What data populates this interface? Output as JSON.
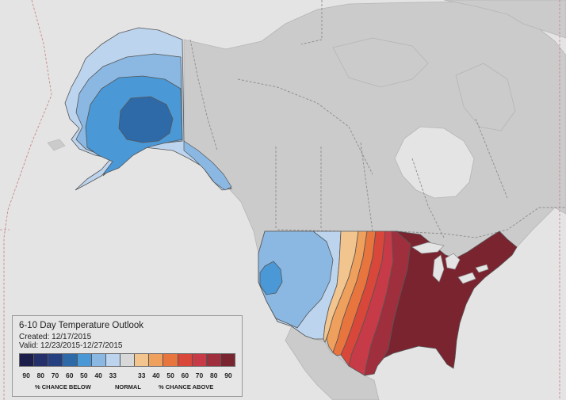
{
  "legend": {
    "title": "6-10 Day Temperature Outlook",
    "created": "Created: 12/17/2015",
    "valid": "Valid: 12/23/2015-12/27/2015",
    "ticks": [
      "90",
      "80",
      "70",
      "60",
      "50",
      "40",
      "33",
      "",
      "33",
      "40",
      "50",
      "60",
      "70",
      "80",
      "90"
    ],
    "colors": [
      "#1b1d4a",
      "#25306b",
      "#263f80",
      "#2e6aa8",
      "#4a98d6",
      "#8ab8e2",
      "#bdd4ee",
      "#d8d8d8",
      "#f2c48e",
      "#efa05c",
      "#e8743e",
      "#d9463a",
      "#c73a47",
      "#9f2f3d",
      "#7a2430"
    ],
    "caption_below": "% CHANCE BELOW",
    "caption_normal": "NORMAL",
    "caption_above": "% CHANCE ABOVE"
  },
  "map": {
    "ocean_color": "#e4e4e4",
    "land_color": "#cbcbcb",
    "border_color": "#8c8c8c",
    "probability_regions": [
      {
        "category": "below",
        "level": "33"
      },
      {
        "category": "below",
        "level": "40"
      },
      {
        "category": "below",
        "level": "50"
      },
      {
        "category": "below",
        "level": "60"
      },
      {
        "category": "above",
        "level": "33"
      },
      {
        "category": "above",
        "level": "40"
      },
      {
        "category": "above",
        "level": "50"
      },
      {
        "category": "above",
        "level": "60"
      },
      {
        "category": "above",
        "level": "70"
      },
      {
        "category": "above",
        "level": "80"
      },
      {
        "category": "above",
        "level": "90"
      }
    ]
  }
}
